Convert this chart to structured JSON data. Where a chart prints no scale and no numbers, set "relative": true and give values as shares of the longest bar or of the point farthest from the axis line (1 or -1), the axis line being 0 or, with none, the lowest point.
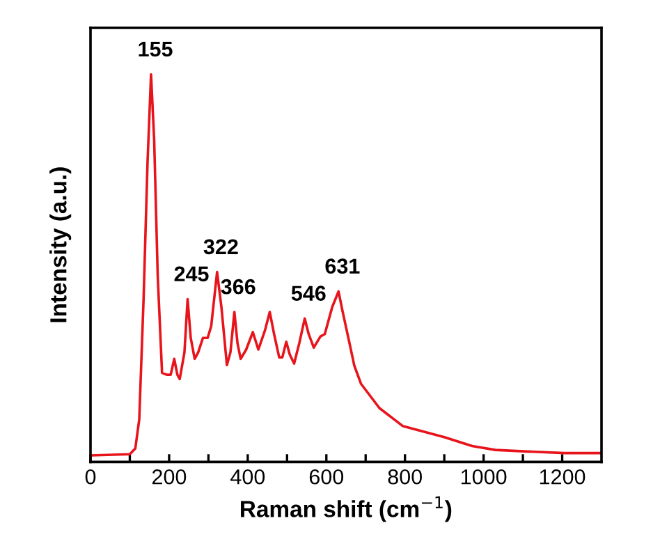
{
  "chart_data": {
    "type": "line",
    "relative": true,
    "xlabel": "Raman shift (cm$^{−1}$)",
    "ylabel": "Intensity (a.u.)",
    "xlim": [
      0,
      1300
    ],
    "xticks": [
      0,
      {
        "value": 100,
        "label": null
      },
      200,
      {
        "value": 300,
        "label": null
      },
      400,
      {
        "value": 500,
        "label": null
      },
      600,
      {
        "value": 700,
        "label": null
      },
      800,
      {
        "value": 900,
        "label": null
      },
      1000,
      {
        "value": 1100,
        "label": null
      },
      1200
    ],
    "tick_labels": "x",
    "grid": false,
    "series": [
      {
        "color": "#e8141c",
        "x": [
          0,
          100,
          114,
          124,
          135,
          145,
          154,
          162,
          171,
          182,
          194,
          204,
          213,
          221,
          227,
          239,
          247,
          255,
          265,
          274,
          286,
          298,
          307,
          322,
          333,
          347,
          356,
          366,
          374,
          382,
          396,
          413,
          427,
          444,
          456,
          467,
          480,
          488,
          498,
          507,
          518,
          531,
          545,
          555,
          568,
          585,
          596,
          615,
          631,
          641,
          659,
          671,
          688,
          735,
          794,
          900,
          971,
          1030,
          1112,
          1206,
          1300
        ],
        "values": [
          0.017,
          0.02,
          0.035,
          0.11,
          0.42,
          0.77,
          1.0,
          0.83,
          0.48,
          0.23,
          0.225,
          0.225,
          0.266,
          0.225,
          0.214,
          0.283,
          0.42,
          0.32,
          0.266,
          0.283,
          0.32,
          0.32,
          0.35,
          0.49,
          0.4,
          0.25,
          0.283,
          0.387,
          0.306,
          0.266,
          0.29,
          0.335,
          0.29,
          0.34,
          0.387,
          0.33,
          0.27,
          0.27,
          0.31,
          0.277,
          0.254,
          0.306,
          0.37,
          0.33,
          0.295,
          0.324,
          0.33,
          0.4,
          0.44,
          0.39,
          0.306,
          0.249,
          0.202,
          0.139,
          0.093,
          0.064,
          0.041,
          0.031,
          0.027,
          0.023,
          0.023
        ]
      }
    ],
    "annotations": [
      {
        "text": "155",
        "x": 155,
        "y": 1.0
      },
      {
        "text": "245",
        "x": 247,
        "y": 0.42
      },
      {
        "text": "322",
        "x": 322,
        "y": 0.49
      },
      {
        "text": "366",
        "x": 366,
        "y": 0.387
      },
      {
        "text": "546",
        "x": 545,
        "y": 0.37
      },
      {
        "text": "631",
        "x": 631,
        "y": 0.44
      }
    ]
  }
}
